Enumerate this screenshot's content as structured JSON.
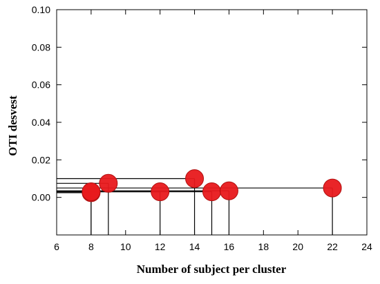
{
  "chart_data": {
    "type": "scatter",
    "title": "",
    "xlabel": "Number of subject per cluster",
    "ylabel": "OTI desvest",
    "xlim": [
      6,
      24
    ],
    "ylim": [
      -0.02,
      0.1
    ],
    "xticks": [
      "6",
      "8",
      "10",
      "12",
      "14",
      "16",
      "18",
      "20",
      "22",
      "24"
    ],
    "yticks": [
      "0.00",
      "0.02",
      "0.04",
      "0.06",
      "0.08",
      "0.10"
    ],
    "grid": false,
    "drop_lines": true,
    "marker_color": "#e8191c",
    "points": [
      {
        "x": 8,
        "y": 0.0025
      },
      {
        "x": 8,
        "y": 0.003
      },
      {
        "x": 9,
        "y": 0.0075
      },
      {
        "x": 12,
        "y": 0.003
      },
      {
        "x": 14,
        "y": 0.01
      },
      {
        "x": 15,
        "y": 0.003
      },
      {
        "x": 16,
        "y": 0.0035
      },
      {
        "x": 22,
        "y": 0.005
      }
    ]
  }
}
